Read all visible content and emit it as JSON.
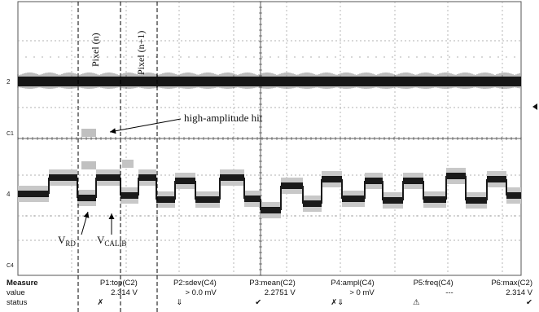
{
  "annotations": {
    "pixel_n": "Pixel (n)",
    "pixel_n1": "Pixel (n+1)",
    "hit": "high-amplitude hit",
    "vrd_main": "V",
    "vrd_sub": "RD",
    "vcalib_main": "V",
    "vcalib_sub": "CALIB"
  },
  "channel_markers": {
    "c2": "2",
    "c1": "C1",
    "c4": "4",
    "c4b": "C4"
  },
  "measure": {
    "title": "Measure",
    "row_labels": [
      "value",
      "status"
    ],
    "columns": [
      {
        "header": "P1:top(C2)",
        "value": "2.314 V",
        "status": "✗"
      },
      {
        "header": "P2:sdev(C4)",
        "value": "> 0.0 mV",
        "status": "⇓"
      },
      {
        "header": "P3:mean(C2)",
        "value": "2.2751 V",
        "status": "✔"
      },
      {
        "header": "P4:ampl(C4)",
        "value": "> 0 mV",
        "status": "✗⇓"
      },
      {
        "header": "P5:freq(C4)",
        "value": "---",
        "status": "⚠"
      },
      {
        "header": "P6:max(C2)",
        "value": "2.314 V",
        "status": "✔"
      }
    ]
  }
}
